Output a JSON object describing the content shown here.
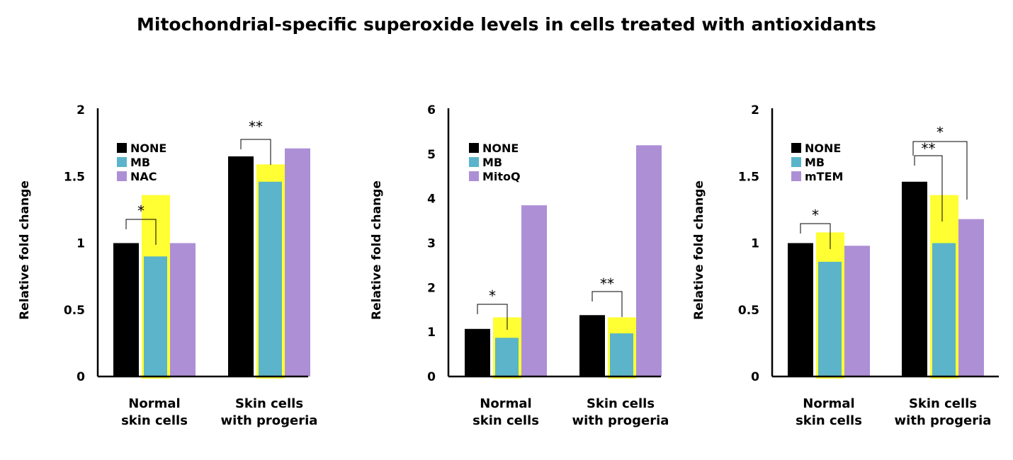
{
  "title": "Mitochondrial-specific superoxide levels in cells treated with antioxidants",
  "colors": {
    "none": "#000000",
    "mb": "#5bb4c9",
    "treatment": "#ad8fd6",
    "highlight": "#ffff33"
  },
  "chart_data": [
    {
      "type": "bar",
      "ylabel": "Relative fold change",
      "ylim": [
        0,
        2
      ],
      "yticks": [
        0,
        0.5,
        1,
        1.5,
        2
      ],
      "ytick_labels": [
        "0",
        "0.5",
        "1",
        "1.5",
        "2"
      ],
      "categories": [
        {
          "line1": "Normal",
          "line2": "skin cells"
        },
        {
          "line1": "Skin cells",
          "line2": "with progeria"
        }
      ],
      "series": [
        {
          "name": "NONE",
          "values": [
            1.0,
            1.65
          ]
        },
        {
          "name": "MB",
          "values": [
            0.9,
            1.46
          ]
        },
        {
          "name": "NAC",
          "values": [
            1.0,
            1.71
          ]
        }
      ],
      "highlight_top": [
        1.36,
        1.59
      ],
      "significance": [
        "*",
        "**"
      ]
    },
    {
      "type": "bar",
      "ylabel": "Relative fold change",
      "ylim": [
        0,
        6
      ],
      "yticks": [
        0,
        1,
        2,
        3,
        4,
        5,
        6
      ],
      "ytick_labels": [
        "0",
        "1",
        "2",
        "3",
        "4",
        "5",
        "6"
      ],
      "categories": [
        {
          "line1": "Normal",
          "line2": "skin cells"
        },
        {
          "line1": "Skin cells",
          "line2": "with progeria"
        }
      ],
      "series": [
        {
          "name": "NONE",
          "values": [
            1.07,
            1.38
          ]
        },
        {
          "name": "MB",
          "values": [
            0.87,
            0.97
          ]
        },
        {
          "name": "MitoQ",
          "values": [
            3.85,
            5.2
          ]
        }
      ],
      "highlight_top": [
        1.33,
        1.33
      ],
      "significance": [
        "*",
        "**"
      ]
    },
    {
      "type": "bar",
      "ylabel": "Relative fold change",
      "ylim": [
        0,
        2
      ],
      "yticks": [
        0,
        0.5,
        1,
        1.5,
        2
      ],
      "ytick_labels": [
        "0",
        "0.5",
        "1",
        "1.5",
        "2"
      ],
      "categories": [
        {
          "line1": "Normal",
          "line2": "skin cells"
        },
        {
          "line1": "Skin cells",
          "line2": "with progeria"
        }
      ],
      "series": [
        {
          "name": "NONE",
          "values": [
            1.0,
            1.46
          ]
        },
        {
          "name": "MB",
          "values": [
            0.86,
            1.0
          ]
        },
        {
          "name": "mTEM",
          "values": [
            0.98,
            1.18
          ]
        }
      ],
      "highlight_top": [
        1.08,
        1.36
      ],
      "significance": [
        "*",
        "**",
        "*"
      ]
    }
  ]
}
